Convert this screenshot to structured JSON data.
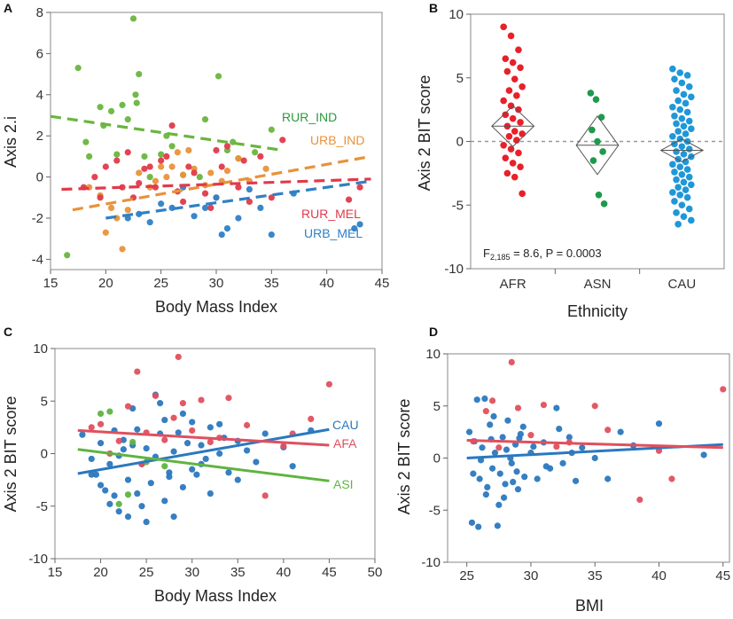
{
  "chart_data": [
    {
      "id": "A",
      "type": "scatter",
      "panel_label": "A",
      "xlabel": "Body Mass Index",
      "ylabel": "Axis 2.i",
      "xlim": [
        15,
        45
      ],
      "ylim": [
        -4.5,
        8
      ],
      "xticks": [
        15,
        20,
        25,
        30,
        35,
        40,
        45
      ],
      "yticks": [
        -4,
        -2,
        0,
        2,
        4,
        6,
        8
      ],
      "series": [
        {
          "name": "RUR_IND",
          "color": "#6ab53f",
          "x": [
            16.5,
            17.5,
            18.2,
            18.5,
            19.5,
            19.8,
            20.5,
            21,
            21.5,
            22,
            22.5,
            22.7,
            22.8,
            23,
            23.5,
            24,
            25,
            25.5,
            26,
            27,
            28.5,
            29,
            30.2,
            31,
            31.5,
            32,
            33.5,
            35
          ],
          "y": [
            -3.8,
            5.3,
            1.7,
            1.0,
            3.4,
            2.5,
            3.2,
            1.1,
            3.5,
            2.8,
            7.7,
            4.0,
            3.6,
            5.0,
            1.0,
            0.0,
            1.1,
            2.0,
            1.5,
            0.1,
            0.0,
            2.8,
            4.9,
            1.3,
            1.7,
            0.9,
            1.2,
            2.3
          ],
          "fit": [
            [
              15,
              2.95
            ],
            [
              36,
              1.3
            ]
          ]
        },
        {
          "name": "URB_IND",
          "color": "#e8923a",
          "x": [
            18.5,
            19.5,
            20,
            20.5,
            21,
            21.5,
            22,
            23,
            24,
            24.5,
            25,
            25.5,
            26,
            26.5,
            27,
            27.5,
            28,
            29,
            29.5,
            30,
            30.5,
            31,
            32,
            33,
            34.5
          ],
          "y": [
            -0.5,
            -0.9,
            -2.7,
            -1.5,
            -2.0,
            -3.5,
            -1.6,
            0.2,
            -0.5,
            -0.2,
            0.5,
            0.0,
            0.5,
            1.2,
            0.1,
            1.3,
            0.4,
            -0.4,
            0.2,
            -1.0,
            -0.2,
            0.3,
            0.9,
            -0.2,
            0.4
          ],
          "fit": [
            [
              17,
              -1.6
            ],
            [
              44,
              1.0
            ]
          ]
        },
        {
          "name": "RUR_MEL",
          "color": "#e03a4a",
          "x": [
            18,
            19,
            19.5,
            20,
            21,
            21.5,
            22,
            22.5,
            23,
            23.5,
            24,
            24.5,
            25,
            25.5,
            26,
            26.5,
            27,
            27.5,
            28,
            29,
            29.5,
            30,
            30.5,
            31,
            32,
            32.5,
            33,
            34,
            35,
            36,
            42,
            43
          ],
          "y": [
            -0.5,
            0.0,
            -1.0,
            0.5,
            0.8,
            -0.5,
            1.2,
            -1.0,
            -0.3,
            0.4,
            0.5,
            -0.5,
            0.8,
            1.0,
            2.5,
            -0.7,
            -1.2,
            0.5,
            0.2,
            -0.8,
            -1.5,
            1.3,
            0.5,
            1.5,
            -0.5,
            0.8,
            -1.2,
            1.0,
            -1.0,
            1.8,
            -1.1,
            -0.5
          ],
          "fit": [
            [
              16,
              -0.6
            ],
            [
              44,
              -0.1
            ]
          ]
        },
        {
          "name": "URB_MEL",
          "color": "#2f80c6",
          "x": [
            22,
            23,
            24,
            25,
            26,
            27,
            28,
            29,
            30,
            30.5,
            31,
            32,
            33,
            34,
            35,
            37,
            42.5,
            43
          ],
          "y": [
            -2.0,
            -1.8,
            -2.2,
            -1.3,
            -1.5,
            -0.5,
            -1.9,
            -1.5,
            -1.0,
            -2.8,
            -2.5,
            -2.0,
            -0.6,
            -1.5,
            -2.8,
            -0.8,
            -2.5,
            -2.3
          ],
          "fit": [
            [
              20,
              -2.0
            ],
            [
              44,
              -0.2
            ]
          ]
        }
      ]
    },
    {
      "id": "B",
      "type": "scatter",
      "panel_label": "B",
      "xlabel": "Ethnicity",
      "ylabel": "Axis 2 BIT score",
      "ylim": [
        -10,
        10
      ],
      "yticks": [
        -10,
        -5,
        0,
        5,
        10
      ],
      "categories": [
        "AFR",
        "ASN",
        "CAU"
      ],
      "annotation": "F",
      "annotation_sub": "2,185",
      "annotation_rest": " = 8.6, P  = 0.0003",
      "series": [
        {
          "name": "AFR",
          "color": "#e8202a",
          "mean": 1.2,
          "values": [
            9.0,
            8.3,
            7.2,
            6.5,
            6.2,
            5.8,
            5.5,
            4.9,
            4.3,
            4.0,
            3.6,
            3.2,
            2.8,
            2.5,
            2.1,
            1.8,
            1.5,
            1.2,
            0.8,
            0.6,
            0.4,
            0.1,
            -0.3,
            -0.6,
            -0.9,
            -1.3,
            -1.7,
            -2.0,
            -2.5,
            -2.8,
            -4.1
          ]
        },
        {
          "name": "ASN",
          "color": "#1e9a4c",
          "mean": -0.3,
          "values": [
            3.8,
            3.3,
            1.9,
            0.9,
            0.0,
            -0.8,
            -1.5,
            -4.2,
            -4.9
          ]
        },
        {
          "name": "CAU",
          "color": "#1f97d8",
          "mean": -0.7,
          "values": [
            5.7,
            5.4,
            5.2,
            4.9,
            4.6,
            4.3,
            4.0,
            3.7,
            3.5,
            3.2,
            3.0,
            2.7,
            2.5,
            2.3,
            2.0,
            1.8,
            1.6,
            1.4,
            1.2,
            1.0,
            0.8,
            0.6,
            0.4,
            0.2,
            0.0,
            -0.2,
            -0.4,
            -0.6,
            -0.8,
            -1.0,
            -1.2,
            -1.4,
            -1.6,
            -1.8,
            -2.0,
            -2.2,
            -2.4,
            -2.6,
            -2.8,
            -3.0,
            -3.2,
            -3.4,
            -3.6,
            -3.8,
            -4.0,
            -4.2,
            -4.4,
            -4.7,
            -5.0,
            -5.3,
            -5.6,
            -5.9,
            -6.2,
            -6.5
          ]
        }
      ]
    },
    {
      "id": "C",
      "type": "scatter",
      "panel_label": "C",
      "xlabel": "Body Mass Index",
      "ylabel": "Axis 2 BIT score",
      "xlim": [
        15,
        50
      ],
      "ylim": [
        -10,
        10
      ],
      "xticks": [
        15,
        20,
        25,
        30,
        35,
        40,
        45,
        50
      ],
      "yticks": [
        -10,
        -5,
        0,
        5,
        10
      ],
      "series": [
        {
          "name": "CAU",
          "color": "#2a78bf",
          "x": [
            18,
            19,
            19.5,
            20,
            20.5,
            21,
            21,
            21.5,
            22,
            22,
            22.5,
            23,
            23,
            23.5,
            24,
            24,
            24.5,
            25,
            25,
            25.5,
            26,
            26,
            26.5,
            27,
            27,
            27.5,
            28,
            28,
            28.5,
            29,
            29.5,
            30,
            30,
            30.5,
            31,
            31.5,
            32,
            32,
            33,
            33.5,
            34,
            35,
            36,
            37,
            38,
            40,
            41,
            43,
            19,
            20,
            21.5,
            22.5,
            23.5,
            24.5,
            26.5,
            27.5,
            29,
            31,
            33,
            35
          ],
          "y": [
            1.8,
            -0.5,
            -2.0,
            1.0,
            -3.5,
            -1.0,
            -4.8,
            2.2,
            -0.2,
            -5.5,
            1.3,
            -2.5,
            -6.0,
            0.8,
            2.3,
            -3.8,
            -1.0,
            0.5,
            -6.5,
            -2.8,
            5.6,
            -0.3,
            1.9,
            -4.5,
            3.2,
            -1.8,
            0.2,
            -6.0,
            2.0,
            -3.2,
            1.0,
            -1.5,
            3.0,
            -2.0,
            0.8,
            -0.5,
            2.5,
            -3.8,
            0.0,
            1.5,
            -1.8,
            1.2,
            0.3,
            -0.8,
            1.9,
            0.6,
            -1.2,
            2.2,
            -2.0,
            -3.0,
            -4.0,
            0.4,
            4.3,
            -5.0,
            4.8,
            -2.2,
            3.8,
            -1.0,
            2.8,
            -2.5
          ],
          "fit": [
            [
              17.5,
              -1.9
            ],
            [
              45,
              2.3
            ]
          ]
        },
        {
          "name": "AFA",
          "color": "#e0505e",
          "x": [
            19,
            20,
            21,
            22,
            23,
            24,
            24.5,
            25,
            26,
            27,
            28,
            28.5,
            29,
            30,
            31,
            32,
            33,
            34,
            36,
            38,
            40,
            41,
            43,
            45
          ],
          "y": [
            2.5,
            2.8,
            0.0,
            1.2,
            4.5,
            7.8,
            -1.0,
            2.0,
            5.5,
            1.3,
            3.4,
            9.2,
            4.8,
            2.2,
            5.1,
            1.1,
            1.5,
            5.3,
            2.7,
            -4.0,
            0.7,
            1.9,
            3.3,
            6.6
          ],
          "fit": [
            [
              17.5,
              2.2
            ],
            [
              45,
              0.8
            ]
          ]
        },
        {
          "name": "ASI",
          "color": "#5fb440",
          "x": [
            20,
            21,
            22,
            23,
            23.5,
            25,
            27
          ],
          "y": [
            3.8,
            4.0,
            -4.8,
            -3.9,
            1.1,
            -0.8,
            -1.2
          ],
          "fit": [
            [
              17.5,
              0.4
            ],
            [
              45,
              -2.6
            ]
          ]
        }
      ]
    },
    {
      "id": "D",
      "type": "scatter",
      "panel_label": "D",
      "xlabel": "BMI",
      "ylabel": "Axis 2 BIT score",
      "xlim": [
        23.5,
        45.5
      ],
      "ylim": [
        -10,
        10
      ],
      "xticks": [
        25,
        30,
        35,
        40,
        45
      ],
      "yticks": [
        -10,
        -5,
        0,
        5,
        10
      ],
      "series": [
        {
          "name": "blue",
          "color": "#2a78bf",
          "x": [
            25.2,
            25.5,
            25.8,
            26,
            26.2,
            26.5,
            26.8,
            27,
            27.2,
            27.5,
            27.8,
            28,
            28.2,
            28.5,
            28.8,
            29,
            29.2,
            29.5,
            30,
            30.5,
            31,
            31.5,
            32,
            32.5,
            33,
            33.5,
            34,
            35,
            36,
            37,
            38,
            40,
            25.4,
            25.9,
            26.4,
            26.9,
            27.4,
            27.9,
            28.4,
            28.9,
            29.4,
            30.2,
            31.2,
            32.2,
            33.2,
            25.6,
            26.1,
            26.6,
            27.1,
            27.6,
            28.1,
            28.6,
            29.1,
            43.5
          ],
          "y": [
            2.5,
            -1.5,
            5.6,
            -2.0,
            1.0,
            -3.5,
            3.2,
            -1.0,
            0.5,
            -4.5,
            2.0,
            -2.5,
            3.6,
            -0.5,
            1.3,
            -3.0,
            2.3,
            -1.8,
            0.5,
            -2.0,
            1.5,
            -1.0,
            4.8,
            -0.5,
            2.0,
            -2.2,
            1.0,
            0.0,
            -2.0,
            2.5,
            1.2,
            3.3,
            -6.2,
            -6.6,
            5.7,
            1.8,
            -6.5,
            -3.8,
            0.0,
            -1.3,
            3.0,
            1.1,
            -0.8,
            2.8,
            0.5,
            1.6,
            -0.2,
            -2.8,
            4.0,
            -1.5,
            0.8,
            -2.3,
            1.9,
            0.3
          ],
          "fit": [
            [
              25,
              0.0
            ],
            [
              45,
              1.3
            ]
          ]
        },
        {
          "name": "red",
          "color": "#e0505e",
          "x": [
            25.5,
            26.5,
            27,
            27.5,
            28.5,
            29,
            30,
            31,
            32,
            33,
            35,
            36,
            38.5,
            40,
            41,
            45
          ],
          "y": [
            1.6,
            4.5,
            5.5,
            1.0,
            9.2,
            4.8,
            2.2,
            5.1,
            1.1,
            1.5,
            5.0,
            2.7,
            -4.0,
            0.7,
            -2.0,
            6.6
          ],
          "fit": [
            [
              25,
              1.7
            ],
            [
              45,
              1.0
            ]
          ]
        }
      ]
    }
  ]
}
